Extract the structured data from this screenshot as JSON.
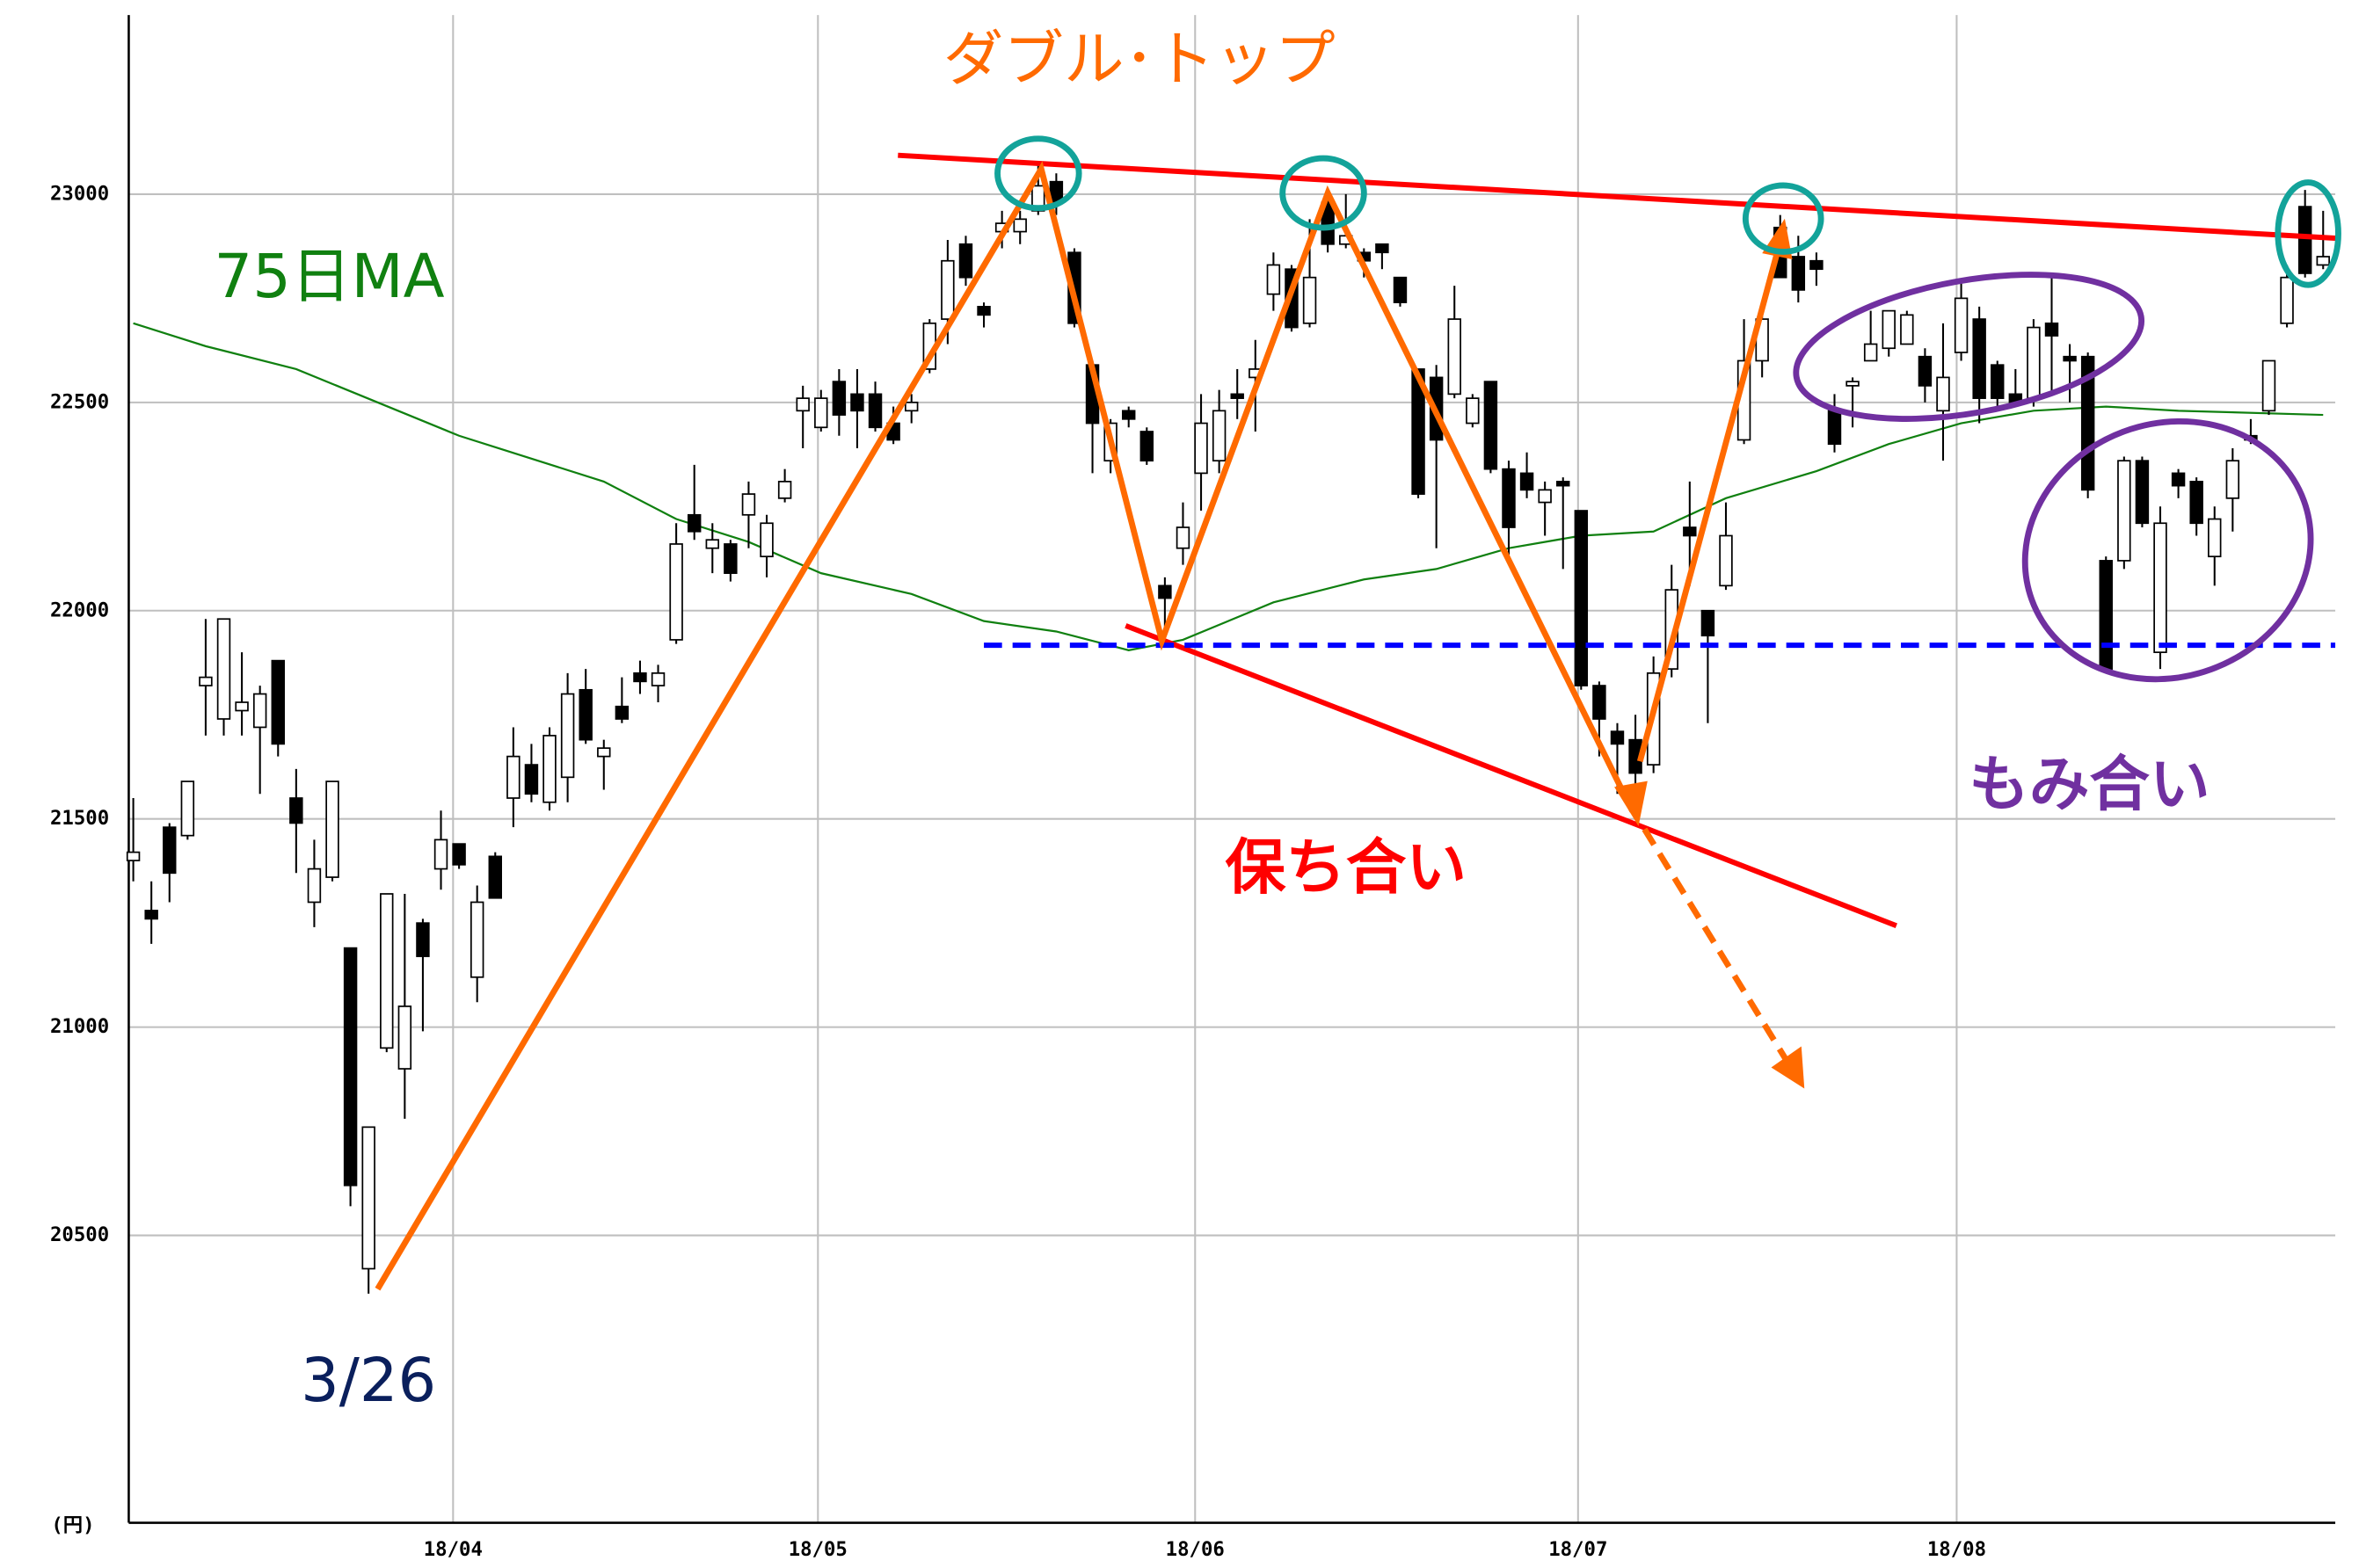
{
  "chart_data": {
    "type": "candlestick",
    "y_unit": "(円)",
    "annotations": [
      {
        "text": "ダブル･トップ",
        "color": "#ff6a00"
      },
      {
        "text": "75日MA",
        "color": "#108010"
      },
      {
        "text": "3/26",
        "color": "#0a1f5c"
      },
      {
        "text": "保ち合い",
        "color": "#ff0000"
      },
      {
        "text": "もみ合い",
        "color": "#7030a0"
      }
    ],
    "up_color": "#ffffff",
    "down_color": "#000000",
    "open": [
      21400,
      21280,
      21480,
      21460,
      21820,
      21740,
      21760,
      21720,
      21880,
      21550,
      21300,
      21360,
      21190,
      20420,
      20950,
      20900,
      21250,
      21380,
      21440,
      21120,
      21410,
      21550,
      21630,
      21540,
      21600,
      21810,
      21650,
      21770,
      21850,
      21820,
      21930,
      22230,
      22150,
      22160,
      22230,
      22130,
      22270,
      22480,
      22440,
      22550,
      22520,
      22520,
      22450,
      22480,
      22580,
      22700,
      22880,
      22730,
      22910,
      22910,
      22960,
      23030,
      22860,
      22590,
      22360,
      22480,
      22430,
      22060,
      22150,
      22330,
      22360,
      22520,
      22560,
      22760,
      22820,
      22690,
      22980,
      22880,
      22860,
      22880,
      22800,
      22580,
      22560,
      22520,
      22450,
      22550,
      22340,
      22330,
      22260,
      22310,
      22240,
      21820,
      21710,
      21690,
      21630,
      21860,
      22200,
      22000,
      22060,
      22410,
      22600,
      22920,
      22850,
      22840,
      22480,
      22540,
      22600,
      22630,
      22640,
      22610,
      22480,
      22620,
      22700,
      22590,
      22520,
      22510,
      22690,
      22610,
      22610,
      22120,
      22120,
      22360,
      21900,
      22330,
      22310,
      22130,
      22270,
      22420,
      22480,
      22690,
      22970,
      22830
    ],
    "high": [
      21550,
      21350,
      21490,
      21590,
      21980,
      21980,
      21900,
      21820,
      21880,
      21620,
      21450,
      21590,
      21190,
      20760,
      21320,
      21320,
      21260,
      21520,
      21440,
      21340,
      21420,
      21720,
      21680,
      21720,
      21850,
      21860,
      21690,
      21840,
      21880,
      21870,
      22210,
      22350,
      22210,
      22170,
      22310,
      22230,
      22340,
      22540,
      22530,
      22580,
      22580,
      22550,
      22490,
      22520,
      22700,
      22890,
      22900,
      22740,
      22960,
      22960,
      23080,
      23050,
      22870,
      22600,
      22460,
      22490,
      22440,
      22080,
      22260,
      22520,
      22530,
      22580,
      22650,
      22860,
      22830,
      22940,
      22990,
      23000,
      22870,
      22880,
      22800,
      22580,
      22590,
      22780,
      22520,
      22550,
      22360,
      22380,
      22310,
      22320,
      22240,
      21830,
      21730,
      21750,
      21890,
      22110,
      22310,
      22000,
      22260,
      22700,
      22740,
      22950,
      22900,
      22860,
      22520,
      22560,
      22720,
      22720,
      22720,
      22630,
      22690,
      22790,
      22730,
      22600,
      22580,
      22700,
      22810,
      22640,
      22620,
      22130,
      22370,
      22370,
      22250,
      22340,
      22320,
      22250,
      22390,
      22460,
      22600,
      22830,
      23010,
      22960
    ],
    "low": [
      21350,
      21200,
      21300,
      21450,
      21700,
      21700,
      21700,
      21560,
      21650,
      21370,
      21240,
      21350,
      20570,
      20360,
      20940,
      20780,
      20990,
      21330,
      21380,
      21060,
      21310,
      21480,
      21540,
      21520,
      21540,
      21680,
      21570,
      21730,
      21800,
      21780,
      21920,
      22170,
      22090,
      22070,
      22150,
      22080,
      22260,
      22390,
      22430,
      22420,
      22390,
      22430,
      22400,
      22450,
      22570,
      22640,
      22780,
      22680,
      22870,
      22880,
      22950,
      22950,
      22680,
      22330,
      22330,
      22440,
      22350,
      21930,
      22110,
      22240,
      22330,
      22460,
      22430,
      22720,
      22670,
      22680,
      22860,
      22870,
      22800,
      22820,
      22730,
      22270,
      22150,
      22510,
      22440,
      22330,
      22130,
      22270,
      22180,
      22100,
      21810,
      21650,
      21560,
      21530,
      21610,
      21840,
      22060,
      21730,
      22050,
      22400,
      22560,
      22800,
      22740,
      22780,
      22380,
      22440,
      22600,
      22610,
      22640,
      22500,
      22360,
      22600,
      22450,
      22480,
      22490,
      22490,
      22520,
      22500,
      22270,
      21850,
      22100,
      22200,
      21860,
      22270,
      22180,
      22060,
      22190,
      22400,
      22470,
      22680,
      22800,
      22820
    ],
    "close": [
      21420,
      21260,
      21370,
      21590,
      21840,
      21980,
      21780,
      21800,
      21680,
      21490,
      21380,
      21590,
      20620,
      20760,
      21320,
      21050,
      21170,
      21450,
      21390,
      21300,
      21310,
      21650,
      21560,
      21700,
      21800,
      21690,
      21670,
      21740,
      21830,
      21850,
      22160,
      22190,
      22170,
      22090,
      22280,
      22210,
      22310,
      22510,
      22510,
      22470,
      22480,
      22440,
      22410,
      22500,
      22690,
      22840,
      22800,
      22710,
      22930,
      22940,
      23020,
      22980,
      22690,
      22450,
      22450,
      22460,
      22360,
      22030,
      22200,
      22450,
      22480,
      22510,
      22580,
      22830,
      22680,
      22800,
      22880,
      22900,
      22840,
      22860,
      22740,
      22280,
      22410,
      22700,
      22510,
      22340,
      22200,
      22290,
      22290,
      22300,
      21820,
      21740,
      21680,
      21610,
      21850,
      22050,
      22180,
      21940,
      22180,
      22600,
      22700,
      22800,
      22770,
      22820,
      22400,
      22550,
      22640,
      22720,
      22710,
      22540,
      22560,
      22750,
      22510,
      22510,
      22500,
      22680,
      22660,
      22600,
      22290,
      21860,
      22360,
      22210,
      22210,
      22300,
      22210,
      22220,
      22360,
      22410,
      22600,
      22800,
      22810,
      22850
    ],
    "ma": {
      "name": "75日MA",
      "color": "#108010",
      "x": [
        0,
        4,
        9,
        18,
        26,
        30,
        34,
        38,
        43,
        47,
        51,
        55,
        58,
        63,
        68,
        72,
        76,
        80,
        84,
        88,
        93,
        97,
        101,
        105,
        109,
        113,
        121
      ],
      "values": [
        22690,
        22635,
        22580,
        22420,
        22310,
        22220,
        22165,
        22090,
        22040,
        21975,
        21950,
        21905,
        21930,
        22020,
        22075,
        22100,
        22150,
        22180,
        22190,
        22270,
        22335,
        22400,
        22450,
        22480,
        22490,
        22480,
        22470
      ]
    },
    "ylim": [
      19810,
      23430
    ],
    "yticks": [
      20500,
      21000,
      21500,
      22000,
      22500,
      23000
    ],
    "xlim": [
      -0.25,
      121.67
    ],
    "xticks": [
      {
        "value": 17.67,
        "label": "18/04"
      },
      {
        "value": 37.83,
        "label": "18/05"
      },
      {
        "value": 58.67,
        "label": "18/06"
      },
      {
        "value": 79.83,
        "label": "18/07"
      },
      {
        "value": 100.75,
        "label": "18/08"
      }
    ],
    "grid": true
  }
}
